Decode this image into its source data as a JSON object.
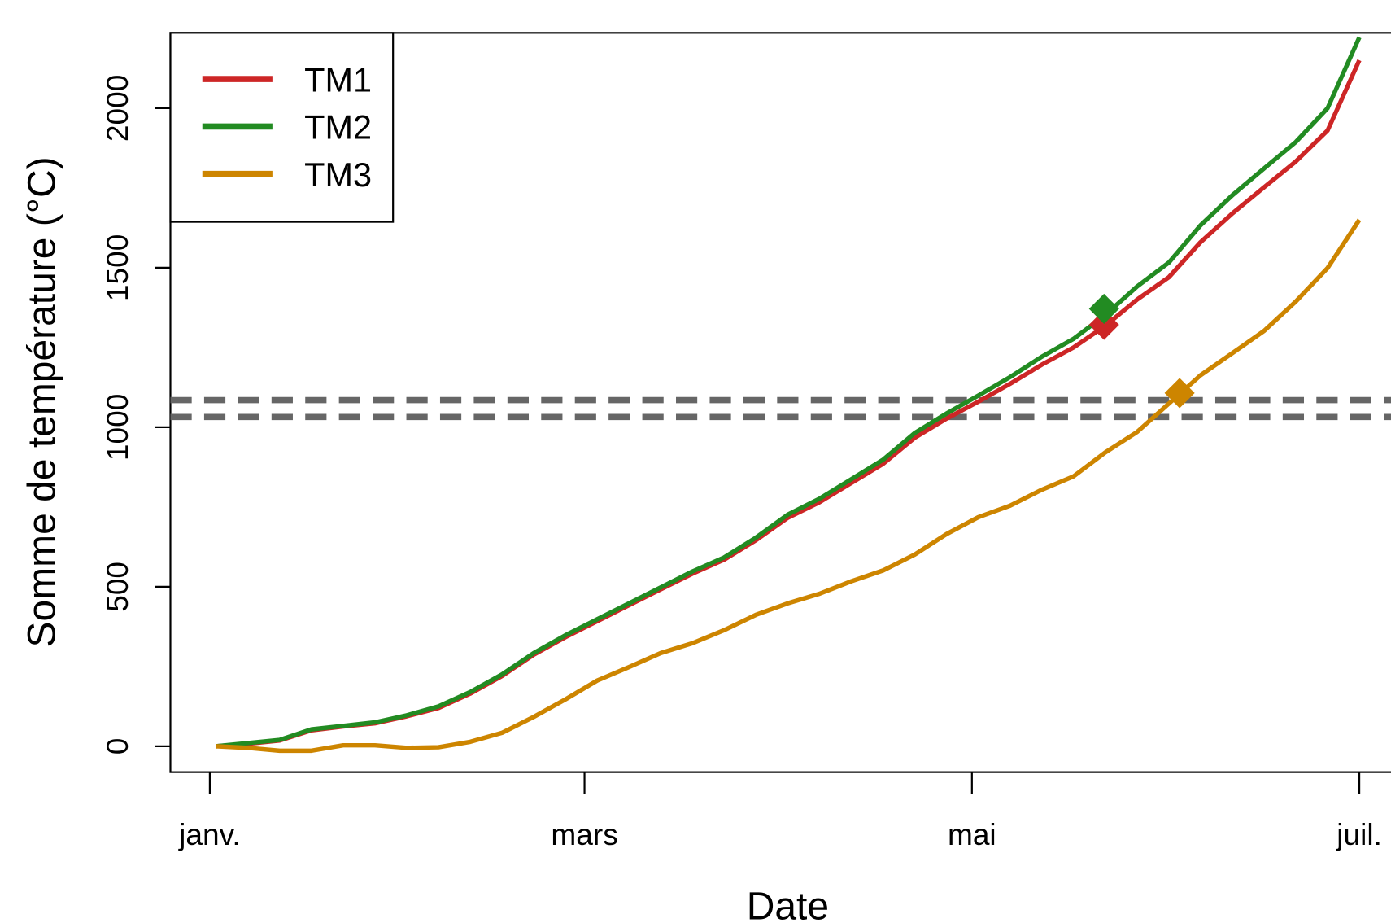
{
  "chart_data": {
    "type": "line",
    "x_label": "Date",
    "y_label": "Somme de température (°C)",
    "x": [
      1,
      6,
      11,
      16,
      21,
      26,
      31,
      36,
      41,
      46,
      51,
      56,
      61,
      66,
      71,
      76,
      81,
      86,
      91,
      96,
      101,
      106,
      111,
      116,
      121,
      126,
      131,
      136,
      141,
      146,
      151,
      156,
      161,
      166,
      171,
      176,
      181
    ],
    "xlim": [
      -6.2,
      188.2
    ],
    "xticks": [
      {
        "value": 0,
        "label": "janv."
      },
      {
        "value": 59,
        "label": "mars"
      },
      {
        "value": 120,
        "label": "mai"
      },
      {
        "value": 181,
        "label": "juil."
      }
    ],
    "ylim": [
      -81,
      2236
    ],
    "yticks": [
      0,
      500,
      1000,
      1500,
      2000
    ],
    "series": [
      {
        "name": "TM1",
        "color": "#CD2626",
        "values": [
          0,
          8,
          18,
          50,
          62,
          72,
          94,
          120,
          165,
          220,
          287,
          342,
          392,
          442,
          492,
          541,
          585,
          646,
          716,
          765,
          825,
          885,
          967,
          1027,
          1080,
          1136,
          1196,
          1250,
          1318,
          1400,
          1470,
          1580,
          1670,
          1752,
          1833,
          1930,
          2150
        ]
      },
      {
        "name": "TM2",
        "color": "#228B22",
        "values": [
          0,
          10,
          20,
          53,
          64,
          75,
          97,
          125,
          170,
          225,
          292,
          348,
          398,
          448,
          498,
          548,
          592,
          654,
          726,
          776,
          837,
          898,
          982,
          1043,
          1099,
          1157,
          1221,
          1277,
          1352,
          1441,
          1516,
          1633,
          1727,
          1811,
          1894,
          2000,
          2222
        ]
      },
      {
        "name": "TM3",
        "color": "#CD8500",
        "values": [
          0,
          -5,
          -14,
          -14,
          3,
          3,
          -5,
          -3,
          14,
          42,
          92,
          147,
          206,
          248,
          292,
          323,
          364,
          412,
          448,
          478,
          517,
          551,
          601,
          665,
          718,
          754,
          804,
          846,
          921,
          985,
          1074,
          1163,
          1232,
          1302,
          1394,
          1499,
          1650
        ]
      }
    ],
    "markers": [
      {
        "x": 140.8,
        "y": 1321,
        "color": "#CD2626"
      },
      {
        "x": 140.8,
        "y": 1371,
        "color": "#228B22"
      },
      {
        "x": 152.7,
        "y": 1107,
        "color": "#CD8500"
      }
    ],
    "hlines": [
      1032,
      1085
    ],
    "hline_color": "#666666",
    "legend": "top-left"
  }
}
